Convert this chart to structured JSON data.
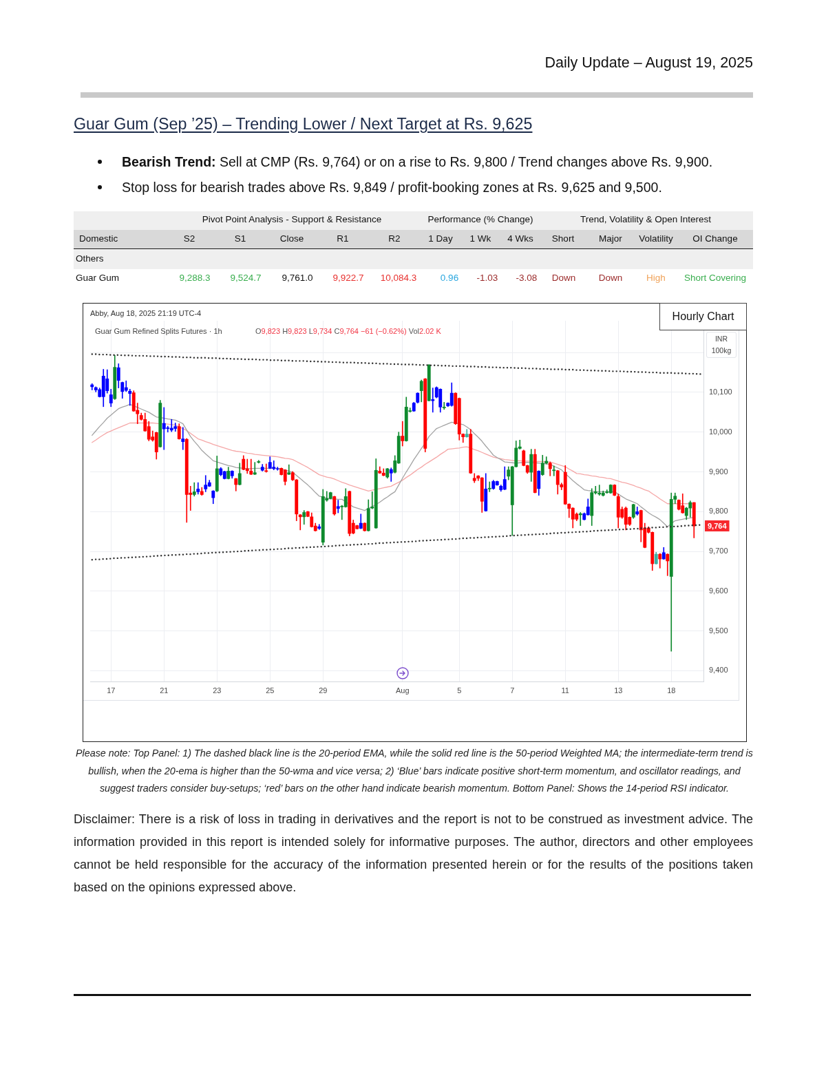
{
  "chart_data": {
    "type": "candlestick",
    "title": "Guar Gum (Sep ’25) – Trending Lower / Next Target at Rs. 9,625",
    "subtitle": "Daily Update – August 19, 2025",
    "ylabel": "INR 100kg",
    "categories": [
      null,
      null,
      null,
      null,
      null,
      "17",
      null,
      null,
      null,
      null,
      null,
      null,
      null,
      null,
      null,
      null,
      null,
      null,
      null,
      "21",
      null,
      null,
      null,
      null,
      null,
      null,
      null,
      null,
      null,
      null,
      null,
      null,
      null,
      "23",
      null,
      null,
      null,
      null,
      null,
      null,
      null,
      null,
      null,
      null,
      null,
      null,
      null,
      "25",
      null,
      null,
      null,
      null,
      null,
      null,
      null,
      null,
      null,
      null,
      null,
      null,
      null,
      "29",
      null,
      null,
      null,
      null,
      null,
      null,
      null,
      null,
      null,
      null,
      null,
      null,
      null,
      null,
      null,
      null,
      null,
      null,
      null,
      null,
      "Aug",
      null,
      null,
      null,
      null,
      null,
      null,
      null,
      null,
      null,
      null,
      null,
      null,
      null,
      null,
      "5",
      null,
      null,
      null,
      null,
      null,
      null,
      null,
      null,
      null,
      null,
      null,
      null,
      null,
      "7",
      null,
      null,
      null,
      null,
      null,
      null,
      null,
      null,
      null,
      null,
      null,
      null,
      null,
      "11",
      null,
      null,
      null,
      null,
      null,
      null,
      null,
      null,
      null,
      null,
      null,
      null,
      null,
      "13",
      null,
      null,
      null,
      null,
      null,
      null,
      null,
      null,
      null,
      null,
      null,
      null,
      null,
      "18",
      null,
      null,
      null,
      null,
      null,
      null,
      null,
      null
    ],
    "ohlc": [
      [
        10119,
        10122,
        10106,
        10114
      ],
      [
        10112,
        10114,
        10101,
        10106
      ],
      [
        10107,
        10111,
        10088,
        10089
      ],
      [
        10089,
        10158,
        10064,
        10141
      ],
      [
        10134,
        10157,
        10098,
        10104
      ],
      [
        10094,
        10108,
        10064,
        10073
      ],
      [
        10084,
        10193,
        10082,
        10163
      ],
      [
        10162,
        10172,
        10111,
        10130
      ],
      [
        10125,
        10126,
        10085,
        10102
      ],
      [
        10112,
        10129,
        10102,
        10105
      ],
      [
        10103,
        10108,
        10067,
        10097
      ],
      [
        10099,
        10104,
        10052,
        10053
      ],
      [
        10055,
        10073,
        10021,
        10046
      ],
      [
        10042,
        10048,
        10030,
        10032
      ],
      [
        10032,
        10048,
        10002,
        10003
      ],
      [
        10014,
        10027,
        9978,
        9982
      ],
      [
        9988,
        10003,
        9977,
        9980
      ],
      [
        9999,
        10000,
        9932,
        9950
      ],
      [
        9963,
        10080,
        9962,
        10073
      ],
      [
        10022,
        10062,
        9956,
        10008
      ],
      [
        10009,
        10015,
        10000,
        10011
      ],
      [
        10010,
        10032,
        10001,
        10005
      ],
      [
        10009,
        10023,
        10002,
        10014
      ],
      [
        10014,
        10021,
        9982,
        9983
      ],
      [
        9976,
        10012,
        9956,
        9983
      ],
      [
        9982,
        9984,
        9773,
        9843
      ],
      [
        9847,
        9864,
        9803,
        9843
      ],
      [
        9843,
        9873,
        9839,
        9850
      ],
      [
        9850,
        9873,
        9844,
        9857
      ],
      [
        9851,
        9861,
        9841,
        9843
      ],
      [
        9857,
        9891,
        9850,
        9867
      ],
      [
        9873,
        9879,
        9863,
        9864
      ],
      [
        9852,
        9853,
        9820,
        9835
      ],
      [
        9852,
        9940,
        9850,
        9908
      ],
      [
        9908,
        9911,
        9890,
        9893
      ],
      [
        9901,
        9902,
        9882,
        9883
      ],
      [
        9883,
        9912,
        9882,
        9902
      ],
      [
        9902,
        9903,
        9884,
        9890
      ],
      [
        9883,
        9884,
        9852,
        9868
      ],
      [
        9868,
        9922,
        9867,
        9896
      ],
      [
        9932,
        9941,
        9905,
        9906
      ],
      [
        9908,
        9932,
        9896,
        9903
      ],
      [
        9902,
        9932,
        9893,
        9894
      ],
      [
        9894,
        9924,
        9893,
        9898
      ],
      [
        9924,
        9929,
        9922,
        9926
      ],
      [
        9912,
        9919,
        9902,
        9904
      ],
      [
        9903,
        9920,
        9899,
        9901
      ],
      [
        9924,
        9938,
        9908,
        9909
      ],
      [
        9912,
        9928,
        9905,
        9908
      ],
      [
        9908,
        9912,
        9904,
        9907
      ],
      [
        9909,
        9910,
        9892,
        9893
      ],
      [
        9905,
        9906,
        9867,
        9876
      ],
      [
        9894,
        9918,
        9893,
        9898
      ],
      [
        9898,
        9901,
        9878,
        9880
      ],
      [
        9880,
        9881,
        9777,
        9794
      ],
      [
        9792,
        9793,
        9754,
        9787
      ],
      [
        9787,
        9803,
        9768,
        9798
      ],
      [
        9800,
        9801,
        9787,
        9788
      ],
      [
        9787,
        9797,
        9761,
        9762
      ],
      [
        9764,
        9771,
        9751,
        9752
      ],
      [
        9762,
        9768,
        9755,
        9758
      ],
      [
        9723,
        9856,
        9716,
        9838
      ],
      [
        9829,
        9851,
        9826,
        9833
      ],
      [
        9833,
        9849,
        9832,
        9848
      ],
      [
        9838,
        9839,
        9791,
        9794
      ],
      [
        9813,
        9829,
        9797,
        9808
      ],
      [
        9812,
        9816,
        9780,
        9814
      ],
      [
        9812,
        9858,
        9811,
        9838
      ],
      [
        9851,
        9852,
        9739,
        9745
      ],
      [
        9771,
        9779,
        9744,
        9746
      ],
      [
        9765,
        9766,
        9756,
        9757
      ],
      [
        9758,
        9794,
        9757,
        9771
      ],
      [
        9771,
        9772,
        9751,
        9752
      ],
      [
        9752,
        9830,
        9751,
        9808
      ],
      [
        9809,
        9850,
        9807,
        9812
      ],
      [
        9759,
        9933,
        9758,
        9904
      ],
      [
        9902,
        9913,
        9896,
        9897
      ],
      [
        9897,
        9908,
        9890,
        9891
      ],
      [
        9887,
        9909,
        9884,
        9908
      ],
      [
        9906,
        9910,
        9876,
        9897
      ],
      [
        9899,
        9941,
        9897,
        9928
      ],
      [
        9922,
        10000,
        9921,
        9990
      ],
      [
        9990,
        10027,
        9965,
        9978
      ],
      [
        9978,
        10088,
        9977,
        10063
      ],
      [
        10052,
        10061,
        10050,
        10054
      ],
      [
        10053,
        10075,
        10052,
        10073
      ],
      [
        10075,
        10099,
        10073,
        10098
      ],
      [
        10104,
        10131,
        10076,
        10128
      ],
      [
        10134,
        10135,
        9950,
        9959
      ],
      [
        10079,
        10170,
        10078,
        10169
      ],
      [
        10079,
        10111,
        10050,
        10082
      ],
      [
        10112,
        10114,
        10086,
        10088
      ],
      [
        10108,
        10109,
        10050,
        10063
      ],
      [
        10061,
        10075,
        10057,
        10063
      ],
      [
        10073,
        10074,
        10064,
        10066
      ],
      [
        10067,
        10124,
        10065,
        10098
      ],
      [
        10098,
        10099,
        10019,
        10021
      ],
      [
        10085,
        10086,
        9980,
        9995
      ],
      [
        9995,
        9996,
        9974,
        9988
      ],
      [
        9988,
        10007,
        9987,
        9995
      ],
      [
        9995,
        10007,
        9896,
        9897
      ],
      [
        9884,
        9896,
        9873,
        9878
      ],
      [
        9890,
        9891,
        9878,
        9884
      ],
      [
        9885,
        9886,
        9798,
        9826
      ],
      [
        9802,
        9896,
        9801,
        9857
      ],
      [
        9857,
        9875,
        9850,
        9859
      ],
      [
        9858,
        9879,
        9856,
        9876
      ],
      [
        9876,
        9877,
        9866,
        9867
      ],
      [
        9864,
        9867,
        9851,
        9855
      ],
      [
        9856,
        9913,
        9855,
        9881
      ],
      [
        9889,
        9913,
        9880,
        9905
      ],
      [
        9817,
        9914,
        9740,
        9913
      ],
      [
        9913,
        9978,
        9912,
        9960
      ],
      [
        9959,
        9980,
        9957,
        9963
      ],
      [
        9953,
        9955,
        9915,
        9916
      ],
      [
        9916,
        9917,
        9896,
        9899
      ],
      [
        9899,
        9957,
        9876,
        9944
      ],
      [
        9944,
        9957,
        9847,
        9848
      ],
      [
        9858,
        9903,
        9841,
        9902
      ],
      [
        9893,
        9942,
        9891,
        9922
      ],
      [
        9922,
        9938,
        9920,
        9927
      ],
      [
        9922,
        9925,
        9890,
        9908
      ],
      [
        9903,
        9915,
        9890,
        9905
      ],
      [
        9903,
        9904,
        9844,
        9868
      ],
      [
        9868,
        9872,
        9855,
        9862
      ],
      [
        9899,
        9916,
        9818,
        9819
      ],
      [
        9819,
        9820,
        9785,
        9808
      ],
      [
        9809,
        9810,
        9759,
        9781
      ],
      [
        9794,
        9797,
        9777,
        9781
      ],
      [
        9792,
        9798,
        9765,
        9795
      ],
      [
        9795,
        9797,
        9779,
        9780
      ],
      [
        9792,
        9832,
        9791,
        9812
      ],
      [
        9790,
        9858,
        9765,
        9848
      ],
      [
        9847,
        9864,
        9844,
        9850
      ],
      [
        9844,
        9867,
        9841,
        9847
      ],
      [
        9841,
        9852,
        9839,
        9847
      ],
      [
        9848,
        9855,
        9846,
        9850
      ],
      [
        9847,
        9868,
        9846,
        9867
      ],
      [
        9867,
        9868,
        9840,
        9841
      ],
      [
        9838,
        9844,
        9759,
        9786
      ],
      [
        9806,
        9812,
        9783,
        9786
      ],
      [
        9809,
        9812,
        9754,
        9768
      ],
      [
        9786,
        9787,
        9765,
        9768
      ],
      [
        9786,
        9819,
        9783,
        9818
      ],
      [
        9800,
        9812,
        9791,
        9794
      ],
      [
        9803,
        9804,
        9724,
        9754
      ],
      [
        9759,
        9771,
        9709,
        9710
      ],
      [
        9759,
        9762,
        9746,
        9748
      ],
      [
        9748,
        9749,
        9652,
        9669
      ],
      [
        9669,
        9698,
        9668,
        9693
      ],
      [
        9693,
        9695,
        9658,
        9681
      ],
      [
        9681,
        9710,
        9680,
        9697
      ],
      [
        9693,
        9694,
        9639,
        9676
      ],
      [
        9637,
        9847,
        9449,
        9831
      ],
      [
        9831,
        9847,
        9820,
        9839
      ],
      [
        9829,
        9830,
        9804,
        9806
      ],
      [
        9815,
        9845,
        9796,
        9797
      ],
      [
        9790,
        9811,
        9780,
        9809
      ],
      [
        9809,
        9827,
        9786,
        9823
      ],
      [
        9823,
        9823,
        9734,
        9764
      ],
      null,
      null
    ],
    "colors": [
      "#0000ff",
      "#0000ff",
      "#0000ff",
      "#0000ff",
      "#0000ff",
      "#0000ff",
      "#0f8a2e",
      "#0000ff",
      "#0000ff",
      "#0000ff",
      "#0000ff",
      "#ff0000",
      "#ff0000",
      "#ff0000",
      "#ff0000",
      "#ff0000",
      "#ff0000",
      "#ff0000",
      "#0f8a2e",
      "#0000ff",
      "#0000ff",
      "#0000ff",
      "#0000ff",
      "#ff0000",
      "#0000ff",
      "#ff0000",
      "#ff0000",
      "#0f8a2e",
      "#0000ff",
      "#ff0000",
      "#0000ff",
      "#0000ff",
      "#0000ff",
      "#0f8a2e",
      "#0000ff",
      "#0000ff",
      "#0f8a2e",
      "#0000ff",
      "#ff0000",
      "#0f8a2e",
      "#ff0000",
      "#ff0000",
      "#ff0000",
      "#0f8a2e",
      "#0f8a2e",
      "#0000ff",
      "#ff0000",
      "#0000ff",
      "#0000ff",
      "#0000ff",
      "#ff0000",
      "#ff0000",
      "#0f8a2e",
      "#ff0000",
      "#ff0000",
      "#ff0000",
      "#0f8a2e",
      "#ff0000",
      "#ff0000",
      "#ff0000",
      "#0000ff",
      "#0f8a2e",
      "#0f8a2e",
      "#0f8a2e",
      "#ff0000",
      "#0000ff",
      "#0f8a2e",
      "#0f8a2e",
      "#ff0000",
      "#ff0000",
      "#ff0000",
      "#0000ff",
      "#ff0000",
      "#0f8a2e",
      "#0f8a2e",
      "#0f8a2e",
      "#ff0000",
      "#ff0000",
      "#0f8a2e",
      "#0000ff",
      "#0f8a2e",
      "#0f8a2e",
      "#ff0000",
      "#0f8a2e",
      "#0f8a2e",
      "#0000ff",
      "#0000ff",
      "#0f8a2e",
      "#ff0000",
      "#0f8a2e",
      "#0000ff",
      "#0000ff",
      "#0000ff",
      "#0f8a2e",
      "#0000ff",
      "#0000ff",
      "#ff0000",
      "#ff0000",
      "#ff0000",
      "#3fb1a3",
      "#ff0000",
      "#ff0000",
      "#ff0000",
      "#ff0000",
      "#0000ff",
      "#0f8a2e",
      "#0000ff",
      "#0000ff",
      "#0000ff",
      "#0000ff",
      "#0f8a2e",
      "#0f8a2e",
      "#0f8a2e",
      "#0f8a2e",
      "#ff0000",
      "#ff0000",
      "#0f8a2e",
      "#ff0000",
      "#0000ff",
      "#0f8a2e",
      "#0f8a2e",
      "#ff0000",
      "#0f8a2e",
      "#ff0000",
      "#ff0000",
      "#ff0000",
      "#ff0000",
      "#ff0000",
      "#ff0000",
      "#0f8a2e",
      "#0000ff",
      "#0000ff",
      "#0f8a2e",
      "#0f8a2e",
      "#0f8a2e",
      "#0f8a2e",
      "#0f8a2e",
      "#0f8a2e",
      "#ff0000",
      "#ff0000",
      "#ff0000",
      "#ff0000",
      "#ff0000",
      "#0f8a2e",
      "#0000ff",
      "#ff0000",
      "#ff0000",
      "#ff0000",
      "#ff0000",
      "#3fb1a3",
      "#ff0000",
      "#0000ff",
      "#ff0000",
      "#0f8a2e",
      "#0f8a2e",
      "#ff0000",
      "#ff0000",
      "#0f8a2e",
      "#0f8a2e",
      "#ff0000",
      null,
      null
    ],
    "series": [
      {
        "type": "line",
        "color": "#a3a3a3",
        "values": [
          9992,
          10003,
          10014,
          10024,
          10035,
          10043,
          10051,
          10059,
          10063,
          10066,
          10070,
          10066,
          10062,
          10058,
          10054,
          10050,
          10044,
          10038,
          10037,
          10035,
          10033,
          10032,
          10030,
          10026,
          10021,
          10005,
          9989,
          9977,
          9966,
          9954,
          9945,
          9937,
          9928,
          9925,
          9922,
          9919,
          9916,
          9914,
          9911,
          9910,
          9909,
          9908,
          9908,
          9909,
          9909,
          9909,
          9909,
          9909,
          9909,
          9909,
          9907,
          9904,
          9902,
          9899,
          9891,
          9883,
          9875,
          9867,
          9858,
          9848,
          9839,
          9837,
          9834,
          9832,
          9832,
          9831,
          9831,
          9825,
          9818,
          9812,
          9809,
          9806,
          9803,
          9808,
          9813,
          9818,
          9824,
          9831,
          9837,
          9844,
          9850,
          9867,
          9884,
          9900,
          9915,
          9931,
          9945,
          9959,
          9972,
          9989,
          9999,
          10009,
          10013,
          10017,
          10021,
          10025,
          10023,
          10021,
          10019,
          10013,
          10006,
          9996,
          9987,
          9977,
          9965,
          9954,
          9942,
          9936,
          9931,
          9925,
          9924,
          9923,
          9922,
          9923,
          9923,
          9924,
          9923,
          9923,
          9922,
          9921,
          9920,
          9919,
          9914,
          9910,
          9905,
          9896,
          9887,
          9878,
          9870,
          9863,
          9855,
          9853,
          9852,
          9850,
          9850,
          9850,
          9850,
          9850,
          9850,
          9844,
          9838,
          9832,
          9828,
          9824,
          9820,
          9812,
          9805,
          9797,
          9791,
          9786,
          9780,
          9771,
          9762,
          9770,
          9777,
          9779,
          9781,
          9783,
          9784,
          9786,
          null,
          null
        ]
      },
      {
        "type": "line",
        "color": "#f5a7a7",
        "values": [
          9974,
          9980,
          9987,
          9993,
          9999,
          10003,
          10007,
          10011,
          10015,
          10019,
          10023,
          10023,
          10023,
          10023,
          10023,
          10023,
          10023,
          10022,
          10021,
          10021,
          10020,
          10019,
          10018,
          10013,
          10009,
          10004,
          9997,
          9990,
          9983,
          9980,
          9976,
          9973,
          9969,
          9966,
          9963,
          9960,
          9957,
          9954,
          9952,
          9951,
          9949,
          9947,
          9946,
          9944,
          9943,
          9942,
          9941,
          9940,
          9939,
          9938,
          9936,
          9934,
          9933,
          9931,
          9926,
          9921,
          9916,
          9911,
          9905,
          9899,
          9893,
          9890,
          9887,
          9885,
          9882,
          9878,
          9874,
          9871,
          9867,
          9864,
          9861,
          9858,
          9855,
          9852,
          9854,
          9856,
          9858,
          9860,
          9862,
          9864,
          9869,
          9874,
          9879,
          9886,
          9892,
          9899,
          9906,
          9912,
          9919,
          9925,
          9931,
          9937,
          9944,
          9950,
          9957,
          9958,
          9959,
          9960,
          9962,
          9963,
          9960,
          9956,
          9953,
          9949,
          9945,
          9941,
          9937,
          9935,
          9933,
          9931,
          9930,
          9929,
          9928,
          9928,
          9927,
          9927,
          9927,
          9926,
          9926,
          9926,
          9925,
          9925,
          9922,
          9919,
          9916,
          9913,
          9907,
          9902,
          9896,
          9895,
          9893,
          9892,
          9890,
          9889,
          9887,
          9886,
          9884,
          9883,
          9880,
          9877,
          9874,
          9872,
          9869,
          9866,
          9862,
          9859,
          9855,
          9852,
          9845,
          9839,
          9832,
          9826,
          9820,
          9820,
          9820,
          9820,
          9820,
          9820,
          9820,
          9820,
          null,
          null
        ]
      },
      {
        "type": "line",
        "color": "#333333",
        "line_style": "dotted",
        "values": [
          10196,
          10196,
          10195,
          10195,
          10195,
          10194,
          10194,
          10194,
          10193,
          10193,
          10193,
          10192,
          10192,
          10192,
          10192,
          10191,
          10191,
          10191,
          10190,
          10190,
          10190,
          10189,
          10189,
          10189,
          10188,
          10188,
          10188,
          10187,
          10187,
          10187,
          10187,
          10186,
          10186,
          10186,
          10185,
          10185,
          10185,
          10184,
          10184,
          10184,
          10183,
          10183,
          10183,
          10183,
          10182,
          10182,
          10182,
          10181,
          10181,
          10181,
          10180,
          10180,
          10180,
          10179,
          10179,
          10179,
          10179,
          10178,
          10178,
          10178,
          10177,
          10177,
          10177,
          10176,
          10176,
          10176,
          10175,
          10175,
          10175,
          10175,
          10174,
          10174,
          10174,
          10173,
          10173,
          10173,
          10172,
          10172,
          10172,
          10171,
          10171,
          10171,
          10170,
          10170,
          10170,
          10170,
          10169,
          10169,
          10169,
          10168,
          10168,
          10168,
          10167,
          10167,
          10167,
          10166,
          10166,
          10166,
          10166,
          10165,
          10165,
          10165,
          10164,
          10164,
          10164,
          10163,
          10163,
          10163,
          10162,
          10162,
          10162,
          10162,
          10161,
          10161,
          10161,
          10160,
          10160,
          10160,
          10159,
          10159,
          10159,
          10158,
          10158,
          10158,
          10158,
          10157,
          10157,
          10157,
          10156,
          10156,
          10156,
          10155,
          10155,
          10155,
          10154,
          10154,
          10154,
          10153,
          10153,
          10153,
          10153,
          10152,
          10152,
          10152,
          10151,
          10151,
          10151,
          10150,
          10150,
          10150,
          10149,
          10149,
          10149,
          10149,
          10148,
          10148,
          10148,
          10147,
          10147,
          10147,
          10146,
          10146
        ]
      },
      {
        "type": "line",
        "color": "#333333",
        "line_style": "dotted",
        "values": [
          9679,
          9680,
          9680,
          9681,
          9681,
          9682,
          9683,
          9683,
          9684,
          9684,
          9685,
          9685,
          9686,
          9686,
          9687,
          9687,
          9688,
          9689,
          9689,
          9690,
          9690,
          9691,
          9691,
          9692,
          9692,
          9693,
          9693,
          9694,
          9694,
          9695,
          9696,
          9696,
          9697,
          9697,
          9698,
          9698,
          9699,
          9699,
          9700,
          9700,
          9701,
          9702,
          9702,
          9703,
          9703,
          9704,
          9704,
          9705,
          9705,
          9706,
          9706,
          9707,
          9708,
          9708,
          9709,
          9709,
          9710,
          9710,
          9711,
          9711,
          9712,
          9712,
          9713,
          9713,
          9714,
          9715,
          9715,
          9716,
          9716,
          9717,
          9717,
          9718,
          9718,
          9719,
          9719,
          9720,
          9721,
          9721,
          9722,
          9722,
          9723,
          9723,
          9724,
          9724,
          9725,
          9725,
          9726,
          9727,
          9727,
          9728,
          9728,
          9729,
          9729,
          9730,
          9730,
          9731,
          9731,
          9732,
          9733,
          9733,
          9734,
          9734,
          9735,
          9735,
          9736,
          9736,
          9737,
          9737,
          9738,
          9738,
          9739,
          9740,
          9740,
          9741,
          9741,
          9742,
          9742,
          9743,
          9743,
          9744,
          9744,
          9745,
          9746,
          9746,
          9747,
          9747,
          9748,
          9748,
          9749,
          9749,
          9750,
          9750,
          9751,
          9752,
          9752,
          9753,
          9753,
          9754,
          9754,
          9755,
          9755,
          9756,
          9756,
          9757,
          9757,
          9758,
          9759,
          9759,
          9760,
          9760,
          9761,
          9761,
          9762,
          9762,
          9763,
          9763,
          9764,
          9765,
          9765,
          9766,
          9766,
          9767
        ]
      }
    ],
    "ylim": [
      9373,
      10280
    ],
    "yticks": [
      {
        "value": 9400,
        "label": "9,400"
      },
      {
        "value": 9500,
        "label": "9,500"
      },
      {
        "value": 9600,
        "label": "9,600"
      },
      {
        "value": 9700,
        "label": "9,700"
      },
      {
        "value": 9800,
        "label": "9,800"
      },
      {
        "value": 9900,
        "label": "9,900"
      },
      {
        "value": 10000,
        "label": "10,000"
      },
      {
        "value": 10100,
        "label": "10,100"
      },
      {
        "value": 10200,
        "label": null
      }
    ],
    "grid": true,
    "annotations": [
      "Bearish Trend: Sell at CMP (Rs. 9,764) or on a rise to Rs. 9,800 / Trend changes above Rs. 9,900.",
      "Stop loss for bearish trades above Rs. 9,849 / profit-booking zones at Rs. 9,625 and 9,500.",
      "Pivot Point Analysis - Support & Resistance",
      "Performance (% Change)",
      "Trend, Volatility & Open Interest",
      "Domestic",
      "S2",
      "S1",
      "Close",
      "R1",
      "R2",
      "1 Day",
      "1 Wk",
      "4 Wks",
      "Short",
      "Major",
      "Volatility",
      "OI Change",
      "Others",
      "Guar Gum",
      "9,288.3",
      "9,524.7",
      "9,761.0",
      "9,922.7",
      "10,084.3",
      "0.96",
      "-1.03",
      "-3.08",
      "Down",
      "Down",
      "High",
      "Short Covering",
      "Abby, Aug 18, 2025 21:19 UTC-4",
      "Guar Gum Refined Splits Futures · 1h",
      "O9,823 H9,823 L9,734 C9,764 −61 (−0.62%) Vol2.02 K",
      "Hourly Chart",
      "Please note: Top Panel: 1) The dashed black line is the 20-period EMA, while the solid red line is the 50-period Weighted MA; the intermediate-term trend is bullish, when the 20-ema is higher than the 50-wma and vice versa; 2) ‘Blue’ bars indicate positive short-term momentum, and oscillator readings, and suggest traders consider buy-setups; ‘red’ bars on the other hand indicate bearish momentum. Bottom Panel: Shows the 14-period RSI indicator.",
      "Disclaimer: There is a risk of loss in trading in derivatives and the report is not to be construed as investment advice. The information provided in this report is intended solely for informative purposes. The author, directors and other employees cannot be held responsible for the accuracy of the information presented herein or for the results of the positions taken based on the opinions expressed above.",
      {
        "text": "9,764",
        "y": 9764
      }
    ]
  }
}
